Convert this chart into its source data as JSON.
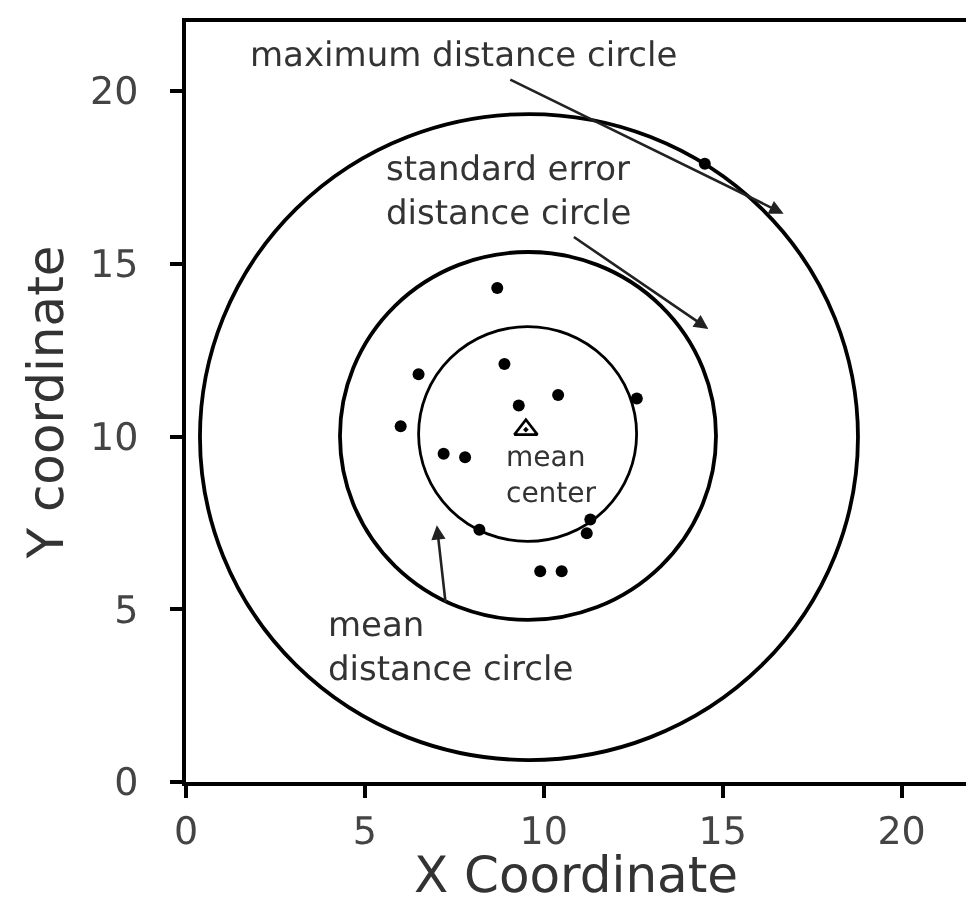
{
  "chart_data": {
    "type": "scatter",
    "xlabel": "X Coordinate",
    "ylabel": "Y coordinate",
    "xlim": [
      0,
      21.8
    ],
    "ylim": [
      0,
      22
    ],
    "xticks": [
      0,
      5,
      10,
      15,
      20
    ],
    "yticks": [
      0,
      5,
      10,
      15,
      20
    ],
    "marker": "circle",
    "series": [
      {
        "color": "#000000",
        "x": [
          8.7,
          6.5,
          6.0,
          8.9,
          9.3,
          10.4,
          12.6,
          7.2,
          7.8,
          8.2,
          11.3,
          11.2,
          9.9,
          10.5,
          14.5
        ],
        "values": [
          14.3,
          11.8,
          10.3,
          12.1,
          10.9,
          11.2,
          11.1,
          9.5,
          9.4,
          7.3,
          7.6,
          7.2,
          6.1,
          6.1,
          17.9
        ]
      },
      {
        "color": "#000000",
        "marker": "triangle",
        "x": [
          9.5
        ],
        "values": [
          10.2
        ]
      }
    ],
    "annotations": [
      "maximum distance circle",
      "standard error\ndistance circle",
      "mean\ndistance circle",
      {
        "text": "mean\ncenter",
        "x": 9.5,
        "y": 10.2
      }
    ]
  }
}
